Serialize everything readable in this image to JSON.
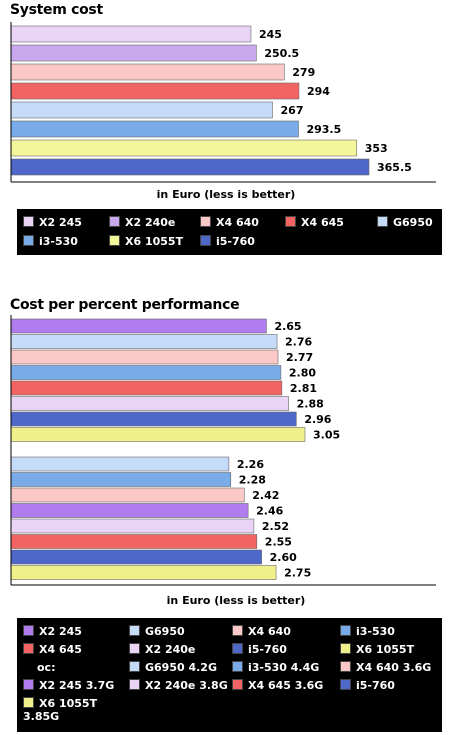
{
  "colors": {
    "X2 245": "#ead4f5",
    "X2 240e": "#c9a8ee",
    "X4 640": "#fbc8c8",
    "X4 645": "#f26464",
    "G6950": "#c5dbf8",
    "i3-530": "#79abe9",
    "X6 1055T": "#f3f59a",
    "i5-760": "#4d68c8",
    "X2 245 OC": "#b07cee",
    "X6 1055T OC": "#f0f08a"
  },
  "chart_data": [
    {
      "type": "bar",
      "orientation": "horizontal",
      "title": "System cost",
      "xlabel": "in Euro (less is better)",
      "categories": [
        "X2 245",
        "X2 240e",
        "X4 640",
        "X4 645",
        "G6950",
        "i3-530",
        "X6 1055T",
        "i5-760"
      ],
      "values": [
        245,
        250.5,
        279,
        294,
        267,
        293.5,
        353,
        365.5
      ],
      "labels": [
        "245",
        "250.5",
        "279",
        "294",
        "267",
        "293.5",
        "353",
        "365.5"
      ],
      "xlim": [
        0,
        370
      ]
    },
    {
      "type": "bar",
      "orientation": "horizontal",
      "title": "Cost per percent performance",
      "xlabel": "in Euro (less is better)",
      "groups": [
        {
          "categories": [
            "X2 245",
            "G6950",
            "X4 640",
            "i3-530",
            "X4 645",
            "X2 240e",
            "i5-760",
            "X6 1055T"
          ],
          "values": [
            2.65,
            2.76,
            2.77,
            2.8,
            2.81,
            2.88,
            2.96,
            3.05
          ],
          "labels": [
            "2.65",
            "2.76",
            "2.77",
            "2.80",
            "2.81",
            "2.88",
            "2.96",
            "3.05"
          ],
          "bar_colors": [
            "X2 245 OC",
            "G6950",
            "X4 640",
            "i3-530",
            "X4 645",
            "X2 245",
            "i5-760",
            "X6 1055T OC"
          ]
        },
        {
          "categories": [
            "G6950 4.2G",
            "i3-530 4.4G",
            "X4 640 3.6G",
            "X2 245 3.7G",
            "X2 240e 3.8G",
            "X4 645 3.6G",
            "i5-760",
            "X6 1055T 3.85G"
          ],
          "values": [
            2.26,
            2.28,
            2.42,
            2.46,
            2.52,
            2.55,
            2.6,
            2.75
          ],
          "labels": [
            "2.26",
            "2.28",
            "2.42",
            "2.46",
            "2.52",
            "2.55",
            "2.60",
            "2.75"
          ],
          "bar_colors": [
            "G6950",
            "i3-530",
            "X4 640",
            "X2 245 OC",
            "X2 245",
            "X4 645",
            "i5-760",
            "X6 1055T OC"
          ]
        }
      ],
      "xlim": [
        0,
        3.2
      ]
    }
  ],
  "legend1": [
    {
      "label": "X2 245",
      "color": "X2 245"
    },
    {
      "label": "X2 240e",
      "color": "X2 240e"
    },
    {
      "label": "X4 640",
      "color": "X4 640"
    },
    {
      "label": "X4 645",
      "color": "X4 645"
    },
    {
      "label": "G6950",
      "color": "G6950"
    },
    {
      "label": "i3-530",
      "color": "i3-530"
    },
    {
      "label": "X6 1055T",
      "color": "X6 1055T"
    },
    {
      "label": "i5-760",
      "color": "i5-760"
    }
  ],
  "legend2": [
    {
      "label": "X2 245",
      "color": "X2 245 OC"
    },
    {
      "label": "G6950",
      "color": "G6950"
    },
    {
      "label": "X4 640",
      "color": "X4 640"
    },
    {
      "label": "i3-530",
      "color": "i3-530"
    },
    {
      "label": "X4 645",
      "color": "X4 645"
    },
    {
      "label": "X2 240e",
      "color": "X2 245"
    },
    {
      "label": "i5-760",
      "color": "i5-760"
    },
    {
      "label": "X6 1055T",
      "color": "X6 1055T OC"
    },
    {
      "label": "oc:",
      "color": null
    },
    {
      "label": "G6950 4.2G",
      "color": "G6950"
    },
    {
      "label": "i3-530 4.4G",
      "color": "i3-530"
    },
    {
      "label": "X4 640 3.6G",
      "color": "X4 640"
    },
    {
      "label": "X2 245 3.7G",
      "color": "X2 245 OC"
    },
    {
      "label": "X2 240e 3.8G",
      "color": "X2 245"
    },
    {
      "label": "X4 645 3.6G",
      "color": "X4 645"
    },
    {
      "label": "i5-760",
      "color": "i5-760"
    },
    {
      "label": "X6 1055T\n3.85G",
      "color": "X6 1055T OC"
    }
  ]
}
